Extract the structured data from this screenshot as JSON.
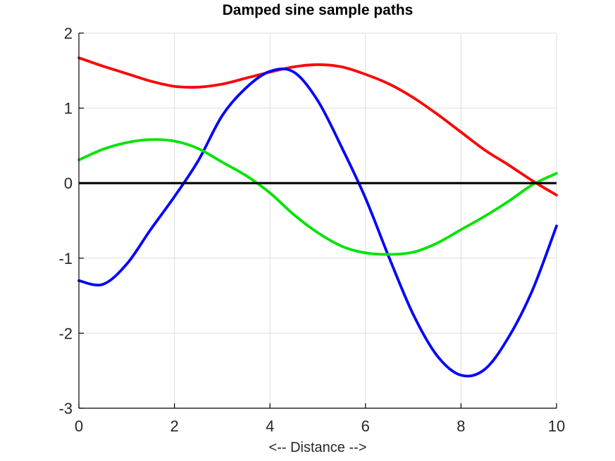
{
  "figure": {
    "title": "Damped sine sample paths",
    "xlabel": "<-- Distance -->"
  },
  "style": {
    "background": "#ffffff",
    "grid_color": "#dedede",
    "axis_color": "#000000",
    "tick_label_color": "#262626",
    "tick_font_size": 22,
    "tick_length": 7
  },
  "chart_data": {
    "type": "line",
    "title": "Damped sine sample paths",
    "xlabel": "<-- Distance -->",
    "ylabel": "",
    "xlim": [
      0,
      10
    ],
    "ylim": [
      -3,
      2
    ],
    "xticks": [
      0,
      2,
      4,
      6,
      8,
      10
    ],
    "yticks": [
      2,
      1,
      0,
      -1,
      -2,
      -3
    ],
    "grid": true,
    "legend_position": "none",
    "x": [
      0,
      0.5,
      1,
      1.5,
      2,
      2.5,
      3,
      3.5,
      4,
      4.5,
      5,
      5.5,
      6,
      6.5,
      7,
      7.5,
      8,
      8.5,
      9,
      9.5,
      10
    ],
    "series": [
      {
        "id": "red-sample-path",
        "color": "#ff0000",
        "line_width": 3.8,
        "values": [
          1.67,
          1.56,
          1.46,
          1.36,
          1.29,
          1.28,
          1.32,
          1.4,
          1.48,
          1.55,
          1.58,
          1.55,
          1.45,
          1.32,
          1.14,
          0.92,
          0.68,
          0.44,
          0.24,
          0.03,
          -0.16
        ]
      },
      {
        "id": "blue-sample-path",
        "color": "#0000ff",
        "line_width": 3.8,
        "values": [
          -1.3,
          -1.35,
          -1.08,
          -0.62,
          -0.18,
          0.3,
          0.9,
          1.27,
          1.49,
          1.48,
          1.1,
          0.48,
          -0.2,
          -1.0,
          -1.75,
          -2.3,
          -2.56,
          -2.48,
          -2.05,
          -1.42,
          -0.57
        ]
      },
      {
        "id": "green-sample-path",
        "color": "#00e400",
        "line_width": 3.8,
        "values": [
          0.31,
          0.45,
          0.54,
          0.58,
          0.56,
          0.46,
          0.28,
          0.1,
          -0.13,
          -0.42,
          -0.66,
          -0.84,
          -0.93,
          -0.95,
          -0.92,
          -0.8,
          -0.62,
          -0.44,
          -0.24,
          -0.02,
          0.13
        ]
      }
    ],
    "baseline": {
      "id": "zero-mean-line",
      "color": "#000000",
      "line_width": 3.2,
      "y": 0
    }
  }
}
